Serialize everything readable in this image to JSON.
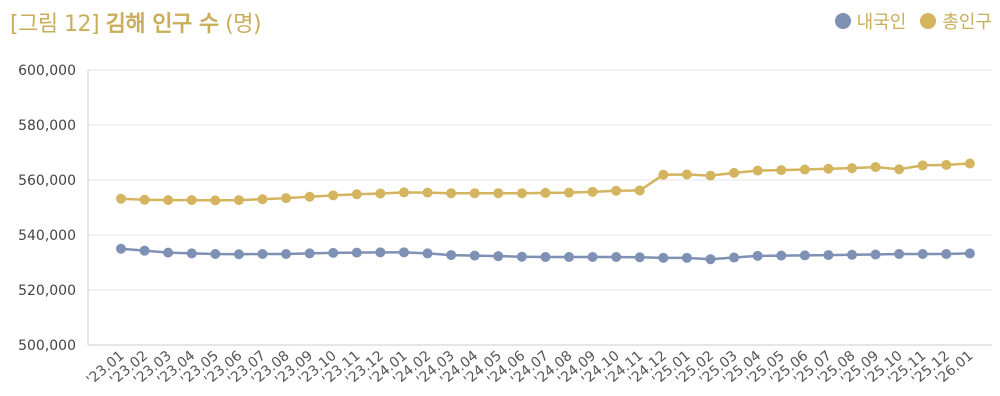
{
  "chart_data": {
    "type": "line",
    "title_prefix": "[그림 12]",
    "title_main": "김해 인구 수",
    "title_unit": "(명)",
    "x": [
      "'23.01",
      "'23.02",
      "'23.03",
      "'23.04",
      "'23.05",
      "'23.06",
      "'23.07",
      "'23.08",
      "'23.09",
      "'23.10",
      "'23.11",
      "'23.12",
      "'24.01",
      "'24.02",
      "'24.03",
      "'24.04",
      "'24.05",
      "'24.06",
      "'24.07",
      "'24.08",
      "'24.09",
      "'24.10",
      "'24.11",
      "'24.12",
      "'25.01",
      "'25.02",
      "'25.03",
      "'25.04",
      "'25.05",
      "'25.06",
      "'25.07",
      "'25.08",
      "'25.09",
      "'25.10",
      "'25.11",
      "'25.12",
      "'26.01"
    ],
    "series": [
      {
        "name": "내국인",
        "color": "#7e90b3",
        "values": [
          535000,
          534300,
          533600,
          533300,
          533100,
          533000,
          533100,
          533100,
          533300,
          533500,
          533600,
          533700,
          533700,
          533300,
          532700,
          532500,
          532300,
          532100,
          532000,
          532000,
          532000,
          532000,
          531900,
          531700,
          531700,
          531200,
          531800,
          532400,
          532500,
          532600,
          532700,
          532800,
          532900,
          533100,
          533100,
          533100,
          533300
        ]
      },
      {
        "name": "총인구",
        "color": "#d4b45e",
        "values": [
          553200,
          552800,
          552700,
          552700,
          552600,
          552700,
          553000,
          553400,
          553900,
          554400,
          554800,
          555100,
          555500,
          555400,
          555200,
          555200,
          555200,
          555200,
          555300,
          555400,
          555700,
          556100,
          556200,
          561900,
          562000,
          561600,
          562600,
          563400,
          563600,
          563800,
          564100,
          564300,
          564700,
          563900,
          565300,
          565500,
          566000
        ]
      }
    ],
    "y_ticks": [
      "600,000",
      "580,000",
      "560,000",
      "540,000",
      "520,000",
      "500,000"
    ],
    "ylim": [
      500000,
      600000
    ],
    "grid": true,
    "legend": "top-right"
  }
}
